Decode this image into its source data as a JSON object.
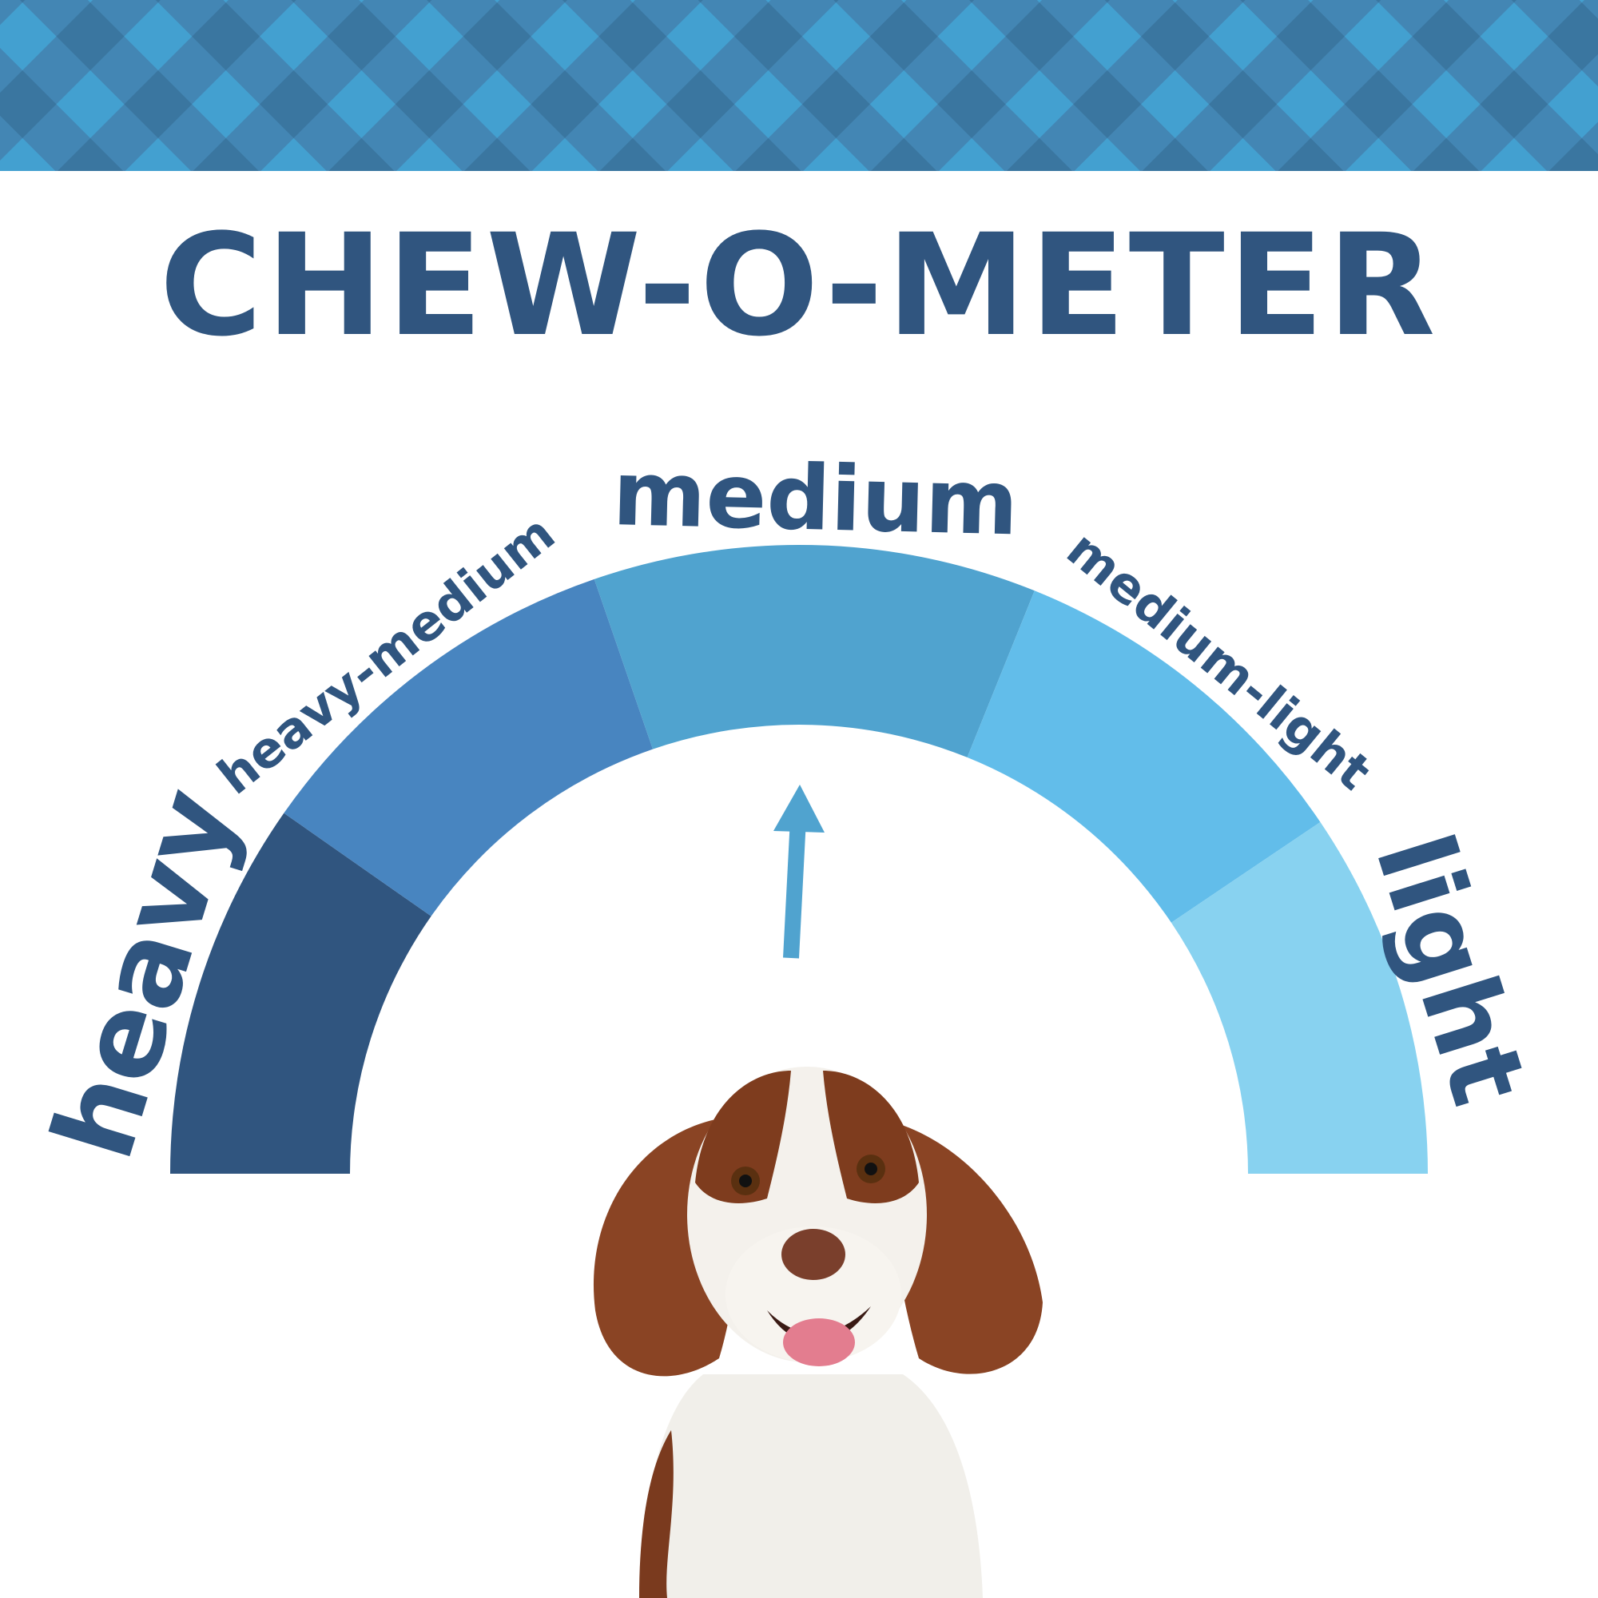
{
  "title": "CHEW-O-METER",
  "colors": {
    "title": "#30557f",
    "plaid_light": "#43a0d0",
    "plaid_mid": "#4386b4",
    "plaid_dark": "#3a76a0",
    "arrow": "#50a3cf"
  },
  "gauge": {
    "selected": "medium",
    "segments": [
      {
        "label": "heavy",
        "color": "#30557f"
      },
      {
        "label": "heavy-medium",
        "color": "#4885c0"
      },
      {
        "label": "medium",
        "color": "#50a3cf"
      },
      {
        "label": "medium-light",
        "color": "#62bdea"
      },
      {
        "label": "light",
        "color": "#88d2f0"
      }
    ]
  }
}
